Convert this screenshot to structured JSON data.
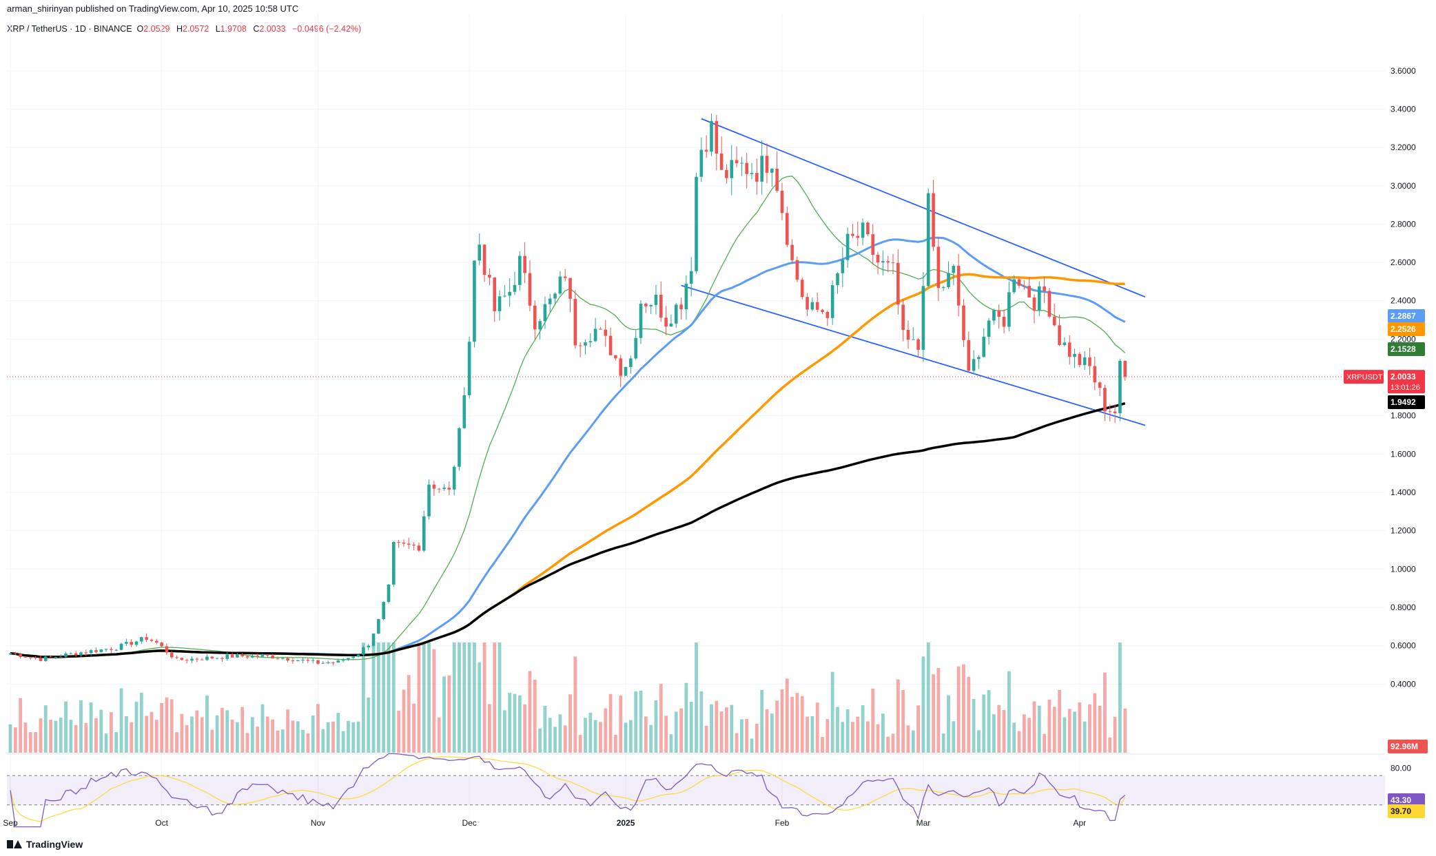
{
  "header": {
    "publisher_line": "arman_shirinyan published on TradingView.com, Apr 10, 2025 10:58 UTC"
  },
  "legend": {
    "symbol": "XRP / TetherUS · 1D · BINANCE",
    "o_label": "O",
    "o": "2.0529",
    "h_label": "H",
    "h": "2.0572",
    "l_label": "L",
    "l": "1.9708",
    "c_label": "C",
    "c": "2.0033",
    "change": "−0.0496 (−2.42%)"
  },
  "branding": {
    "logo_text": "TradingView"
  },
  "colors": {
    "up": "#26a69a",
    "down": "#ef5350",
    "ma_fast": "#4caf50",
    "ma_mid": "#5b9cf6",
    "ma_slow": "#ff9800",
    "ma_long": "#000000",
    "channel": "#2962ff",
    "rsi": "#7e57c2",
    "rsi_ma": "#fdd835"
  },
  "chart_data": {
    "type": "candlestick",
    "symbol": "XRPUSDT",
    "timeframe": "1D",
    "x_axis": {
      "ticks": [
        {
          "label": "Sep",
          "date": "2024-09-01"
        },
        {
          "label": "Oct",
          "date": "2024-10-01"
        },
        {
          "label": "Nov",
          "date": "2024-11-01"
        },
        {
          "label": "Dec",
          "date": "2024-12-01"
        },
        {
          "label": "2025",
          "date": "2025-01-01"
        },
        {
          "label": "Feb",
          "date": "2025-02-01"
        },
        {
          "label": "Mar",
          "date": "2025-03-01"
        },
        {
          "label": "Apr",
          "date": "2025-04-01"
        }
      ]
    },
    "price_axis": {
      "range": [
        0.25,
        3.7
      ],
      "ticks": [
        "3.6000",
        "3.4000",
        "3.2000",
        "3.0000",
        "2.8000",
        "2.6000",
        "2.4000",
        "2.2000",
        "1.8000",
        "1.6000",
        "1.4000",
        "1.2000",
        "1.0000",
        "0.8000",
        "0.6000",
        "0.4000"
      ]
    },
    "price_anchors": [
      [
        "2024-09-01",
        0.56
      ],
      [
        "2024-09-07",
        0.53
      ],
      [
        "2024-09-15",
        0.565
      ],
      [
        "2024-09-22",
        0.59
      ],
      [
        "2024-09-28",
        0.64
      ],
      [
        "2024-09-30",
        0.615
      ],
      [
        "2024-10-04",
        0.525
      ],
      [
        "2024-10-15",
        0.545
      ],
      [
        "2024-10-22",
        0.545
      ],
      [
        "2024-10-27",
        0.53
      ],
      [
        "2024-11-01",
        0.51
      ],
      [
        "2024-11-05",
        0.515
      ],
      [
        "2024-11-09",
        0.56
      ],
      [
        "2024-11-11",
        0.61
      ],
      [
        "2024-11-13",
        0.73
      ],
      [
        "2024-11-15",
        0.9
      ],
      [
        "2024-11-16",
        1.12
      ],
      [
        "2024-11-21",
        1.12
      ],
      [
        "2024-11-23",
        1.45
      ],
      [
        "2024-11-27",
        1.4
      ],
      [
        "2024-11-29",
        1.7
      ],
      [
        "2024-11-30",
        1.95
      ],
      [
        "2024-12-01",
        2.2
      ],
      [
        "2024-12-02",
        2.6
      ],
      [
        "2024-12-03",
        2.7
      ],
      [
        "2024-12-06",
        2.35
      ],
      [
        "2024-12-09",
        2.45
      ],
      [
        "2024-12-11",
        2.6
      ],
      [
        "2024-12-14",
        2.3
      ],
      [
        "2024-12-18",
        2.42
      ],
      [
        "2024-12-20",
        2.55
      ],
      [
        "2024-12-22",
        2.2
      ],
      [
        "2024-12-26",
        2.25
      ],
      [
        "2024-12-29",
        2.15
      ],
      [
        "2024-12-31",
        2.05
      ],
      [
        "2025-01-02",
        2.1
      ],
      [
        "2025-01-04",
        2.4
      ],
      [
        "2025-01-07",
        2.4
      ],
      [
        "2025-01-09",
        2.3
      ],
      [
        "2025-01-12",
        2.4
      ],
      [
        "2025-01-14",
        2.6
      ],
      [
        "2025-01-15",
        3.05
      ],
      [
        "2025-01-16",
        3.2
      ],
      [
        "2025-01-18",
        3.3
      ],
      [
        "2025-01-20",
        3.05
      ],
      [
        "2025-01-24",
        3.1
      ],
      [
        "2025-01-27",
        3.08
      ],
      [
        "2025-01-30",
        3.15
      ],
      [
        "2025-02-02",
        2.75
      ],
      [
        "2025-02-03",
        2.6
      ],
      [
        "2025-02-06",
        2.35
      ],
      [
        "2025-02-10",
        2.35
      ],
      [
        "2025-02-14",
        2.7
      ],
      [
        "2025-02-17",
        2.75
      ],
      [
        "2025-02-20",
        2.6
      ],
      [
        "2025-02-23",
        2.55
      ],
      [
        "2025-02-25",
        2.2
      ],
      [
        "2025-02-28",
        2.15
      ],
      [
        "2025-03-02",
        2.9
      ],
      [
        "2025-03-04",
        2.45
      ],
      [
        "2025-03-07",
        2.55
      ],
      [
        "2025-03-09",
        2.2
      ],
      [
        "2025-03-10",
        2.0
      ],
      [
        "2025-03-14",
        2.3
      ],
      [
        "2025-03-17",
        2.3
      ],
      [
        "2025-03-19",
        2.55
      ],
      [
        "2025-03-23",
        2.4
      ],
      [
        "2025-03-25",
        2.45
      ],
      [
        "2025-03-28",
        2.2
      ],
      [
        "2025-03-31",
        2.1
      ],
      [
        "2025-04-03",
        2.05
      ],
      [
        "2025-04-06",
        1.85
      ],
      [
        "2025-04-08",
        1.82
      ],
      [
        "2025-04-09",
        2.05
      ],
      [
        "2025-04-10",
        2.0033
      ]
    ],
    "moving_averages": [
      {
        "period_role": "fast",
        "color": "#4caf50",
        "last": "2.1528"
      },
      {
        "period_role": "mid",
        "color": "#5b9cf6",
        "last": "2.2867"
      },
      {
        "period_role": "slow",
        "color": "#ff9800",
        "last": "2.2526"
      },
      {
        "period_role": "long",
        "color": "#000000",
        "last": "1.9492"
      }
    ],
    "channel": {
      "upper": [
        [
          "2025-01-16",
          3.35
        ],
        [
          "2025-04-14",
          2.42
        ]
      ],
      "lower": [
        [
          "2025-01-12",
          2.48
        ],
        [
          "2025-04-14",
          1.75
        ]
      ]
    },
    "price_labels": [
      {
        "value": 2.2867,
        "text": "2.2867",
        "bg": "#5b9cf6"
      },
      {
        "value": 2.2526,
        "text": "2.2526",
        "bg": "#ff9800"
      },
      {
        "value": 2.1528,
        "text": "2.1528",
        "bg": "#2e7d32"
      },
      {
        "value": 1.9492,
        "text": "1.9492",
        "bg": "#000000"
      }
    ],
    "current_price": {
      "symbol": "XRPUSDT",
      "value": "2.0033",
      "countdown": "13:01:26"
    },
    "volume": {
      "last_label": "92.96M"
    },
    "rsi": {
      "levels": [
        70,
        30
      ],
      "tick": "80.00",
      "value": "43.30",
      "ma_value": "39.70"
    }
  }
}
